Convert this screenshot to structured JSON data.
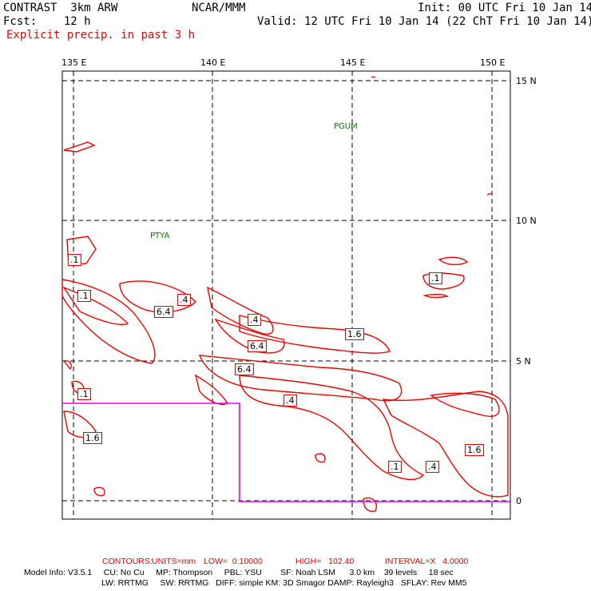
{
  "header": {
    "model": "CONTRAST  3km ARW",
    "center": "NCAR/MMM",
    "init": "Init: 00 UTC Fri 10 Jan 14",
    "fcst": "Fcst:    12 h",
    "valid": "Valid: 12 UTC Fri 10 Jan 14 (22 ChT Fri 10 Jan 14)",
    "field": "Explicit precip. in past 3 h"
  },
  "axes": {
    "lon_labels": [
      "135 E",
      "140 E",
      "145 E",
      "150 E"
    ],
    "lat_labels": [
      "15 N",
      "10 N",
      "5 N",
      "0"
    ]
  },
  "stations": [
    "PGUM",
    "PTYA"
  ],
  "contour_labels": [
    ".1",
    ".1",
    ".4",
    "6.4",
    ".4",
    "6.4",
    "1.6",
    "6.4",
    ".4",
    ".1",
    "1.6",
    ".1",
    ".4",
    "1.6",
    ".1"
  ],
  "footer": {
    "contours": {
      "label": "CONTOURS:",
      "units": "UNITS=mm",
      "low": "LOW=  0.10000",
      "high": "HIGH=   102.40",
      "interval": "INTERVAL=X   4.0000"
    },
    "model_info_line1": "Model Info: V3.5.1     CU: No Cu     MP: Thompson     PBL: YSU        SF: Noah LSM      3.0 km    39 levels     18 sec",
    "model_info_line2": "LW: RRTMG     SW: RRTMG   DIFF: simple KM: 3D Smagor DAMP: Rayleigh3   SFLAY: Rev MM5"
  },
  "colors": {
    "contour": "#ee0000",
    "domain_box": "#ee00ee",
    "station": "#007700",
    "grid": "#000000"
  }
}
